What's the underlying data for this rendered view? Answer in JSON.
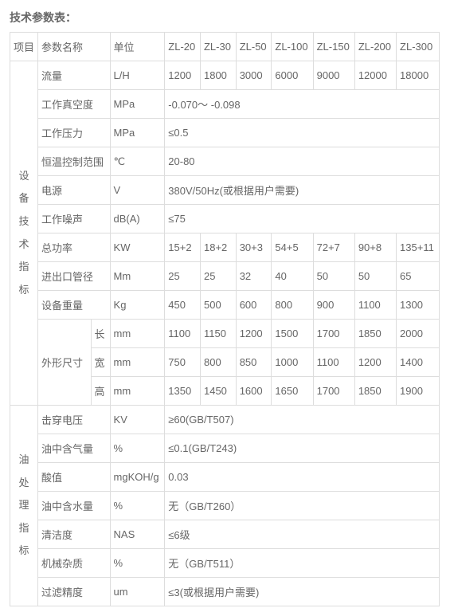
{
  "title": "技术参数表：",
  "header": {
    "c0": "项目",
    "c1": "参数名称",
    "c2": "单位",
    "m0": "ZL-20",
    "m1": "ZL-30",
    "m2": "ZL-50",
    "m3": "ZL-100",
    "m4": "ZL-150",
    "m5": "ZL-200",
    "m6": "ZL-300"
  },
  "groupA": "设<br>备<br>技<br>术<br>指<br>标",
  "groupB": "油<br>处<br>理<br>指<br>标",
  "rows": {
    "flow": {
      "name": "流量",
      "unit": "L/H",
      "v": [
        "1200",
        "1800",
        "3000",
        "6000",
        "9000",
        "12000",
        "18000"
      ]
    },
    "vacuum": {
      "name": "工作真空度",
      "unit": "MPa",
      "val": "-0.070～ -0.098"
    },
    "press": {
      "name": "工作压力",
      "unit": "MPa",
      "val": "≤0.5"
    },
    "temp": {
      "name": "恒温控制范围",
      "unit": "℃",
      "val": "20-80"
    },
    "power": {
      "name": "电源",
      "unit": "V",
      "val": "380V/50Hz(或根据用户需要)"
    },
    "noise": {
      "name": "工作噪声",
      "unit": "dB(A)",
      "val": "≤75"
    },
    "kw": {
      "name": "总功率",
      "unit": "KW",
      "v": [
        "15+2",
        "18+2",
        "30+3",
        "54+5",
        "72+7",
        "90+8",
        "135+11"
      ]
    },
    "dia": {
      "name": "进出口管径",
      "unit": "Mm",
      "v": [
        "25",
        "25",
        "32",
        "40",
        "50",
        "50",
        "65"
      ]
    },
    "wt": {
      "name": "设备重量",
      "unit": "Kg",
      "v": [
        "450",
        "500",
        "600",
        "800",
        "900",
        "1100",
        "1300"
      ]
    },
    "dim": {
      "name": "外形尺寸"
    },
    "dimL": {
      "sub": "长",
      "unit": "mm",
      "v": [
        "1100",
        "1150",
        "1200",
        "1500",
        "1700",
        "1850",
        "2000"
      ]
    },
    "dimW": {
      "sub": "宽",
      "unit": "mm",
      "v": [
        "750",
        "800",
        "850",
        "1000",
        "1100",
        "1200",
        "1400"
      ]
    },
    "dimH": {
      "sub": "高",
      "unit": "mm",
      "v": [
        "1350",
        "1450",
        "1600",
        "1650",
        "1700",
        "1850",
        "1900"
      ]
    },
    "bv": {
      "name": "击穿电压",
      "unit": "KV",
      "val": "≥60(GB/T507)"
    },
    "gas": {
      "name": "油中含气量",
      "unit": "%",
      "val": "≤0.1(GB/T243)"
    },
    "acid": {
      "name": "酸值",
      "unit": "mgKOH/g",
      "val": "0.03"
    },
    "water": {
      "name": "油中含水量",
      "unit": "%",
      "val": "无（GB/T260）"
    },
    "clean": {
      "name": "清洁度",
      "unit": "NAS",
      "val": "≤6级"
    },
    "mech": {
      "name": "机械杂质",
      "unit": "%",
      "val": "无（GB/T511）"
    },
    "filter": {
      "name": "过滤精度",
      "unit": "um",
      "val": "≤3(或根据用户需要)"
    }
  }
}
